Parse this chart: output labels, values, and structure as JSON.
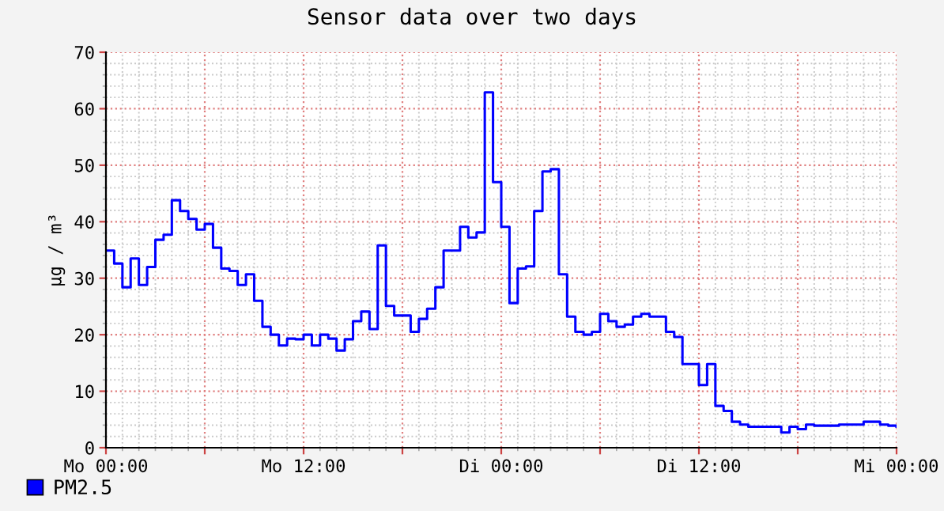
{
  "chart_data": {
    "type": "step",
    "title": "Sensor data over two days",
    "ylabel": "µg / m³",
    "ylim": [
      0,
      70
    ],
    "yticks": [
      0,
      10,
      20,
      30,
      40,
      50,
      60,
      70
    ],
    "grid": true,
    "legend": "bottom left",
    "line_style": "solid",
    "marker": "none",
    "categories": [
      "Mo 00:00",
      null,
      null,
      null,
      null,
      null,
      null,
      null,
      null,
      null,
      null,
      null,
      null,
      null,
      null,
      null,
      null,
      null,
      null,
      null,
      null,
      null,
      null,
      null,
      "Mo 12:00",
      null,
      null,
      null,
      null,
      null,
      null,
      null,
      null,
      null,
      null,
      null,
      null,
      null,
      null,
      null,
      null,
      null,
      null,
      null,
      null,
      null,
      null,
      null,
      "Di 00:00",
      null,
      null,
      null,
      null,
      null,
      null,
      null,
      null,
      null,
      null,
      null,
      null,
      null,
      null,
      null,
      null,
      null,
      null,
      null,
      null,
      null,
      null,
      null,
      "Di 12:00",
      null,
      null,
      null,
      null,
      null,
      null,
      null,
      null,
      null,
      null,
      null,
      null,
      null,
      null,
      null,
      null,
      null,
      null,
      null,
      null,
      null,
      null,
      null,
      "Mi 00:00"
    ],
    "series": [
      {
        "name": "PM2.5",
        "color": "#0000ff",
        "values": [
          34.9,
          32.6,
          28.4,
          33.5,
          28.8,
          32,
          36.8,
          37.7,
          43.8,
          41.9,
          40.5,
          38.6,
          39.6,
          35.4,
          31.7,
          31.3,
          28.8,
          30.7,
          26,
          21.4,
          20,
          18.1,
          19.3,
          19.2,
          20,
          18.1,
          20,
          19.3,
          17.2,
          19.2,
          22.4,
          24.1,
          21,
          35.8,
          25.1,
          23.4,
          23.4,
          20.5,
          22.8,
          24.6,
          28.4,
          34.9,
          34.9,
          39.1,
          37.2,
          38.1,
          62.9,
          47,
          39.1,
          25.6,
          31.7,
          32.1,
          41.9,
          48.9,
          49.3,
          30.7,
          23.2,
          20.5,
          20,
          20.5,
          23.7,
          22.4,
          21.4,
          21.8,
          23.2,
          23.7,
          23.2,
          23.2,
          20.5,
          19.6,
          14.8,
          14.8,
          11.1,
          14.8,
          7.4,
          6.5,
          4.6,
          4.1,
          3.7,
          3.7,
          3.7,
          3.7,
          2.7,
          3.7,
          3.3,
          4.1,
          3.9,
          3.9,
          3.9,
          4.1,
          4.1,
          4.1,
          4.6,
          4.6,
          4.1,
          3.9,
          3.7
        ]
      }
    ]
  }
}
